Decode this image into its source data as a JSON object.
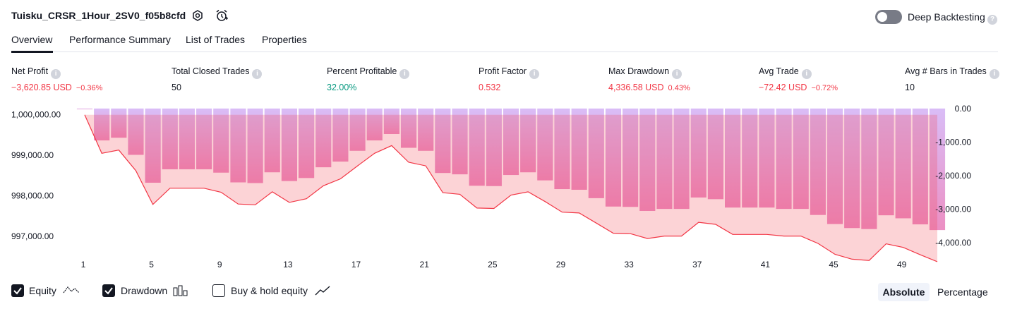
{
  "header": {
    "strategy_name": "Tuisku_CRSR_1Hour_2SV0_f05b8cfd",
    "deep_backtesting_label": "Deep Backtesting",
    "deep_backtesting_enabled": false
  },
  "tabs": [
    {
      "label": "Overview",
      "active": true
    },
    {
      "label": "Performance Summary",
      "active": false
    },
    {
      "label": "List of Trades",
      "active": false
    },
    {
      "label": "Properties",
      "active": false
    }
  ],
  "stats": [
    {
      "label": "Net Profit",
      "value": "−3,620.85 USD",
      "percent": "−0.36%",
      "color": "red"
    },
    {
      "label": "Total Closed Trades",
      "value": "50",
      "percent": "",
      "color": "black"
    },
    {
      "label": "Percent Profitable",
      "value": "32.00%",
      "percent": "",
      "color": "green"
    },
    {
      "label": "Profit Factor",
      "value": "0.532",
      "percent": "",
      "color": "red"
    },
    {
      "label": "Max Drawdown",
      "value": "4,336.58 USD",
      "percent": "0.43%",
      "color": "red"
    },
    {
      "label": "Avg Trade",
      "value": "−72.42 USD",
      "percent": "−0.72%",
      "color": "red"
    },
    {
      "label": "Avg # Bars in Trades",
      "value": "10",
      "percent": "",
      "color": "black"
    }
  ],
  "colors": {
    "loss": "#f23645",
    "profit": "#089981",
    "drawdown_bar": "#c9a8f5",
    "equity_line": "#f23645"
  },
  "chart_data": {
    "type": "line",
    "x_tick_labels": [
      "1",
      "5",
      "9",
      "13",
      "17",
      "21",
      "25",
      "29",
      "33",
      "37",
      "41",
      "45",
      "49"
    ],
    "left_axis": {
      "tick_labels": [
        "1,000,000.00",
        "999,000.00",
        "998,000.00",
        "997,000.00"
      ],
      "ylim": [
        996430,
        1000220
      ]
    },
    "right_axis": {
      "tick_labels": [
        "0.00",
        "-1,000.00",
        "-2,000.00",
        "-3,000.00",
        "-4,000.00"
      ],
      "ylim": [
        -4500,
        80
      ]
    },
    "x": [
      1,
      2,
      3,
      4,
      5,
      6,
      7,
      8,
      9,
      10,
      11,
      12,
      13,
      14,
      15,
      16,
      17,
      18,
      19,
      20,
      21,
      22,
      23,
      24,
      25,
      26,
      27,
      28,
      29,
      30,
      31,
      32,
      33,
      34,
      35,
      36,
      37,
      38,
      39,
      40,
      41,
      42,
      43,
      44,
      45,
      46,
      47,
      48,
      49,
      50,
      51
    ],
    "series": [
      {
        "name": "Equity",
        "kind": "line",
        "values": [
          1000000,
          999050,
          999130,
          998620,
          997790,
          998190,
          998190,
          998190,
          998090,
          997800,
          997780,
          998100,
          997840,
          997930,
          998250,
          998420,
          998740,
          999050,
          999240,
          998830,
          998740,
          998080,
          998040,
          997700,
          997690,
          998020,
          998100,
          997860,
          997600,
          997580,
          997330,
          997080,
          997070,
          996950,
          997010,
          997010,
          997350,
          997300,
          997050,
          997050,
          997050,
          997010,
          997010,
          996830,
          996560,
          996440,
          996410,
          996820,
          996730,
          996550,
          996380
        ]
      },
      {
        "name": "Drawdown",
        "kind": "bar",
        "values": [
          0,
          -950,
          -870,
          -1380,
          -2210,
          -1810,
          -1810,
          -1810,
          -1910,
          -2200,
          -2220,
          -1900,
          -2160,
          -2070,
          -1750,
          -1580,
          -1260,
          -950,
          -760,
          -1170,
          -1260,
          -1920,
          -1960,
          -2300,
          -2310,
          -1980,
          -1900,
          -2140,
          -2400,
          -2420,
          -2670,
          -2920,
          -2930,
          -3050,
          -2990,
          -2990,
          -2650,
          -2700,
          -2950,
          -2950,
          -2950,
          -2990,
          -2990,
          -3170,
          -3440,
          -3560,
          -3590,
          -3180,
          -3270,
          -3450,
          -3620
        ]
      }
    ],
    "grid": false,
    "legend_placement": "bottom-left"
  },
  "legend": [
    {
      "label": "Equity",
      "checked": true
    },
    {
      "label": "Drawdown",
      "checked": true
    },
    {
      "label": "Buy & hold equity",
      "checked": false
    }
  ],
  "scale_toggle": {
    "absolute_label": "Absolute",
    "percentage_label": "Percentage",
    "selected": "Absolute"
  }
}
